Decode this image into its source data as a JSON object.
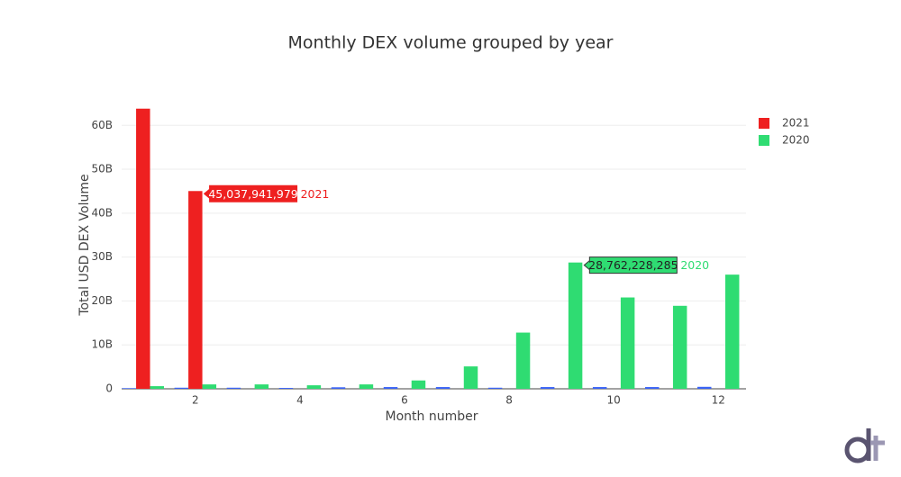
{
  "chart_data": {
    "type": "bar",
    "title": "Monthly DEX volume grouped by year",
    "x_label": "Month number",
    "y_label": "Total USD DEX Volume",
    "x": [
      1,
      2,
      3,
      4,
      5,
      6,
      7,
      8,
      9,
      10,
      11,
      12
    ],
    "series": [
      {
        "color": "#3b64f5",
        "values": [
          150000000,
          250000000,
          250000000,
          200000000,
          350000000,
          400000000,
          400000000,
          250000000,
          400000000,
          400000000,
          400000000,
          450000000
        ]
      },
      {
        "name": "2021",
        "color": "#ee2020",
        "values": [
          63800000000,
          45037941979,
          null,
          null,
          null,
          null,
          null,
          null,
          null,
          null,
          null,
          null
        ],
        "value_labels": [
          null,
          "45,037,941,979",
          null,
          null,
          null,
          null,
          null,
          null,
          null,
          null,
          null,
          null
        ]
      },
      {
        "name": "2020",
        "color": "#2fdc72",
        "values": [
          600000000,
          1000000000,
          1000000000,
          800000000,
          1000000000,
          1900000000,
          5100000000,
          12800000000,
          28762228285,
          20800000000,
          18900000000,
          26000000000
        ],
        "value_labels": [
          null,
          null,
          null,
          null,
          null,
          null,
          null,
          null,
          "28,762,228,285",
          null,
          null,
          null
        ]
      }
    ],
    "xlim": [
      0.59,
      12.53
    ],
    "xticks": [
      2,
      4,
      6,
      8,
      10,
      12
    ],
    "ylim": [
      0,
      66000000000
    ],
    "yticks": [
      {
        "value": 0,
        "label": "0"
      },
      {
        "value": 10000000000,
        "label": "10B"
      },
      {
        "value": 20000000000,
        "label": "20B"
      },
      {
        "value": 30000000000,
        "label": "30B"
      },
      {
        "value": 40000000000,
        "label": "40B"
      },
      {
        "value": 50000000000,
        "label": "50B"
      },
      {
        "value": 60000000000,
        "label": "60B"
      }
    ],
    "grid": true,
    "legend": "top-right"
  }
}
